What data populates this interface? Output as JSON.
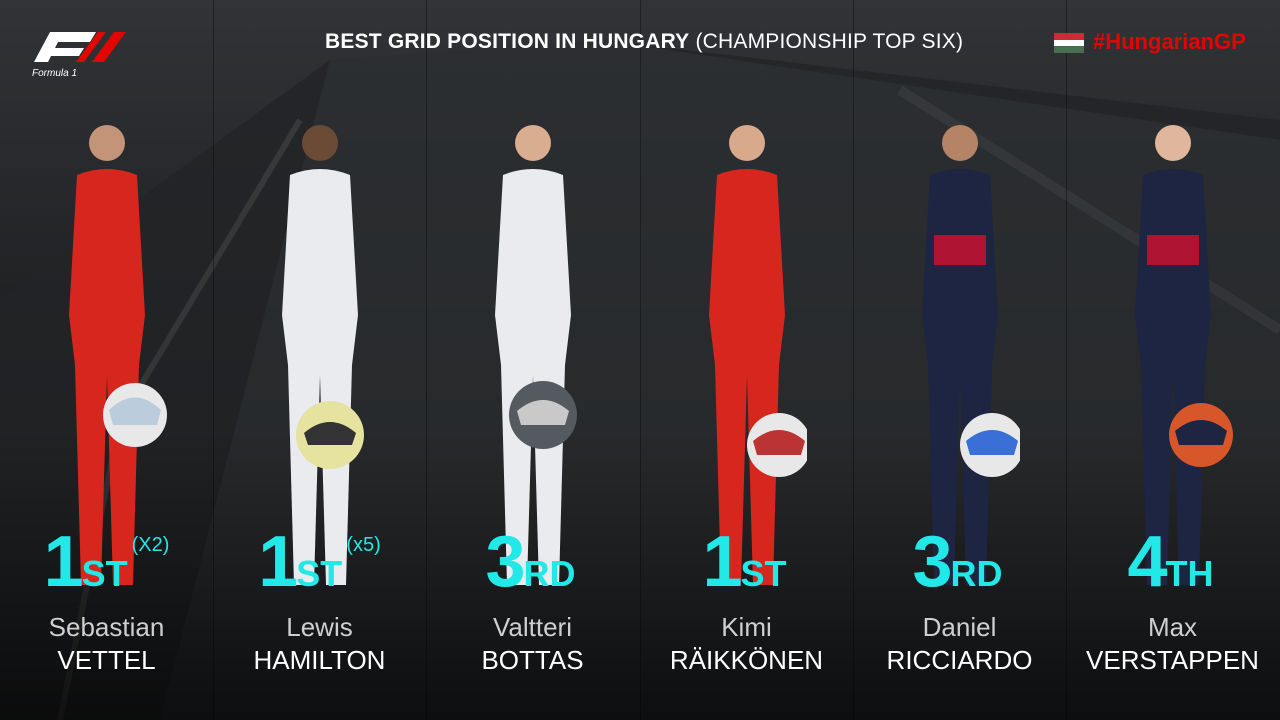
{
  "header": {
    "title_bold": "BEST GRID POSITION IN HUNGARY",
    "title_light": "(CHAMPIONSHIP TOP SIX)",
    "hashtag": "#HungarianGP",
    "logo_caption": "Formula 1"
  },
  "colors": {
    "accent_cyan": "#22e8e8",
    "hashtag_red": "#e10600",
    "ferrari_red": "#d6261d",
    "mercedes_white": "#e9ebee",
    "redbull_navy": "#1d2542",
    "flag_red": "#ce2939",
    "flag_white": "#ffffff",
    "flag_green": "#477050"
  },
  "drivers": [
    {
      "first": "Sebastian",
      "last": "VETTEL",
      "num": "1",
      "suffix": "ST",
      "extra": "(X2)",
      "team": "ferrari"
    },
    {
      "first": "Lewis",
      "last": "HAMILTON",
      "num": "1",
      "suffix": "ST",
      "extra": "(x5)",
      "team": "mercedes"
    },
    {
      "first": "Valtteri",
      "last": "BOTTAS",
      "num": "3",
      "suffix": "RD",
      "extra": "",
      "team": "mercedes"
    },
    {
      "first": "Kimi",
      "last": "RÄIKKÖNEN",
      "num": "1",
      "suffix": "ST",
      "extra": "",
      "team": "ferrari"
    },
    {
      "first": "Daniel",
      "last": "RICCIARDO",
      "num": "3",
      "suffix": "RD",
      "extra": "",
      "team": "redbull"
    },
    {
      "first": "Max",
      "last": "VERSTAPPEN",
      "num": "4",
      "suffix": "TH",
      "extra": "",
      "team": "redbull"
    }
  ]
}
